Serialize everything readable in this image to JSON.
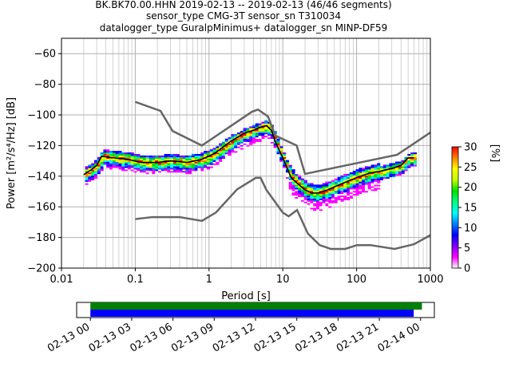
{
  "chart_data": [
    {
      "type": "heatmap",
      "title": [
        "BK.BK70.00.HHN   2019-02-13 -- 2019-02-13  (46/46 segments)",
        "sensor_type CMG-3T sensor_sn T310034",
        "datalogger_type GuralpMinimus+ datalogger_sn MINP-DF59"
      ],
      "xlabel": "Period [s]",
      "ylabel": "Power [m²/s⁴/Hz] [dB]",
      "xscale": "log",
      "xlim": [
        0.01,
        1000
      ],
      "ylim": [
        -200,
        -50
      ],
      "x_ticks": [
        0.01,
        0.1,
        1,
        10,
        100,
        1000
      ],
      "x_tick_labels": [
        "0.01",
        "0.1",
        "1",
        "10",
        "100",
        "1000"
      ],
      "y_ticks": [
        -200,
        -180,
        -160,
        -140,
        -120,
        -100,
        -80,
        -60
      ],
      "y_tick_labels": [
        "−200",
        "−180",
        "−160",
        "−140",
        "−120",
        "−100",
        "−80",
        "−60"
      ],
      "grid": true,
      "noise_models": {
        "high": {
          "name": "NHNM",
          "periods": [
            0.1,
            0.22,
            0.32,
            0.8,
            3.8,
            4.6,
            6.3,
            7.9,
            15.4,
            20,
            354.8,
            1000
          ],
          "db": [
            -91.5,
            -97.4,
            -110.5,
            -120,
            -98,
            -96.5,
            -101,
            -113.5,
            -120,
            -138.5,
            -126,
            -111.5
          ]
        },
        "low": {
          "name": "NLNM",
          "periods": [
            0.1,
            0.17,
            0.4,
            0.8,
            1.24,
            2.4,
            4.3,
            5,
            6,
            10,
            12,
            15.6,
            21.9,
            31.6,
            45,
            70,
            101,
            154,
            328,
            600,
            1000
          ],
          "db": [
            -168,
            -166.7,
            -166.7,
            -169.2,
            -163.7,
            -148.6,
            -141.1,
            -141.1,
            -149,
            -163.8,
            -166.2,
            -162.1,
            -177.5,
            -185,
            -187.5,
            -187.5,
            -185,
            -185,
            -187.5,
            -184.4,
            -178.5
          ]
        }
      },
      "mode_line": {
        "periods": [
          0.02,
          0.025,
          0.03,
          0.035,
          0.05,
          0.08,
          0.12,
          0.2,
          0.3,
          0.5,
          0.8,
          1.2,
          2,
          3,
          4,
          5,
          6,
          7,
          8,
          10,
          13,
          16,
          20,
          25,
          30,
          40,
          50,
          70,
          100,
          150,
          200,
          300,
          400,
          500,
          600
        ],
        "db": [
          -139,
          -136,
          -133,
          -127,
          -128,
          -129,
          -131,
          -131,
          -130,
          -131,
          -129,
          -125,
          -117,
          -112,
          -110,
          -108,
          -107,
          -110,
          -118,
          -128,
          -141,
          -145,
          -149,
          -151,
          -151,
          -149,
          -147,
          -144,
          -141,
          -138,
          -137,
          -135,
          -133,
          -128,
          -128
        ]
      },
      "colorbar": {
        "label": "[%]",
        "min": 0,
        "max": 30,
        "ticks": [
          0,
          5,
          10,
          15,
          20,
          25,
          30
        ],
        "colors": [
          "#ffffff",
          "#ff00ff",
          "#7f00ff",
          "#0000ff",
          "#0080ff",
          "#00ffff",
          "#00ff80",
          "#00e000",
          "#c0ff00",
          "#ffff00",
          "#ff8000",
          "#ff0000"
        ]
      }
    },
    {
      "type": "timeline",
      "tick_labels": [
        "02-13 00",
        "02-13 03",
        "02-13 06",
        "02-13 09",
        "02-13 12",
        "02-13 15",
        "02-13 18",
        "02-13 21",
        "02-14 00"
      ],
      "range_hours": [
        -1,
        25
      ],
      "bars": [
        {
          "name": "data",
          "start_hour": 0,
          "end_hour": 24.1,
          "color": "#008000"
        },
        {
          "name": "used",
          "start_hour": 0,
          "end_hour": 23.5,
          "color": "#0000ff"
        }
      ]
    }
  ]
}
